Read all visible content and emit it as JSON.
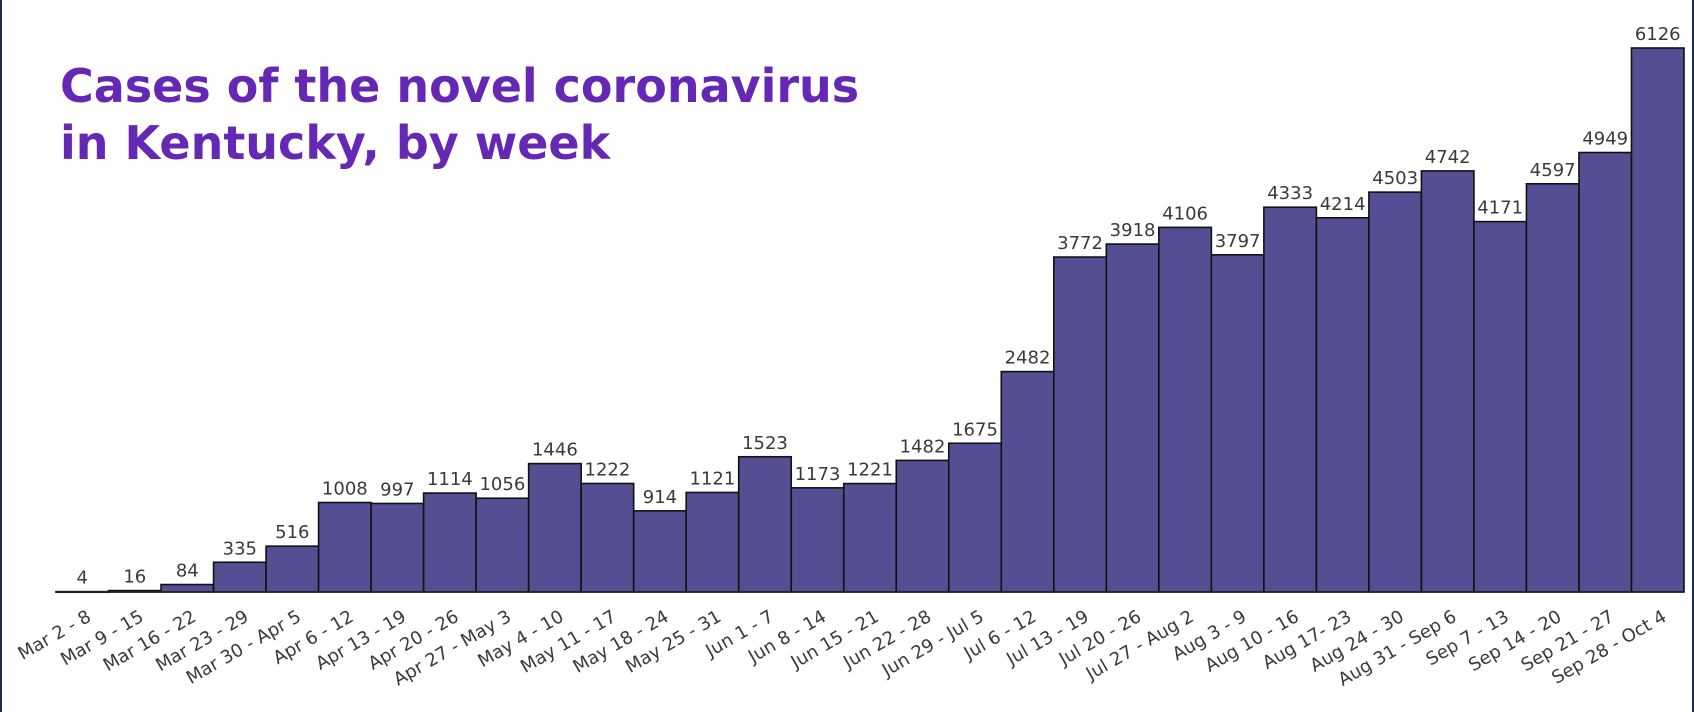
{
  "page": {
    "title": "Cases of the novel coronavirus\nin Kentucky, by week"
  },
  "colors": {
    "title": "#6428b4",
    "bar": "#544f92",
    "outline": "#111111",
    "label": "#3a3a3a"
  },
  "chart_data": {
    "type": "bar",
    "title": "Cases of the novel coronavirus in Kentucky, by week",
    "xlabel": "",
    "ylabel": "",
    "ylim": [
      0,
      6126
    ],
    "grid": false,
    "legend": "none",
    "categories": [
      "Mar 2 - 8",
      "Mar 9 - 15",
      "Mar 16 - 22",
      "Mar 23 - 29",
      "Mar 30 - Apr 5",
      "Apr 6 - 12",
      "Apr 13 - 19",
      "Apr 20 - 26",
      "Apr 27 - May 3",
      "May 4 - 10",
      "May 11 - 17",
      "May 18 - 24",
      "May 25 - 31",
      "Jun 1 - 7",
      "Jun 8 - 14",
      "Jun 15 - 21",
      "Jun 22 - 28",
      "Jun 29 - Jul 5",
      "Jul 6 - 12",
      "Jul 13 - 19",
      "Jul 20 - 26",
      "Jul 27 - Aug 2",
      "Aug 3 - 9",
      "Aug 10 - 16",
      "Aug 17- 23",
      "Aug 24 - 30",
      "Aug 31 - Sep 6",
      "Sep 7 - 13",
      "Sep 14 - 20",
      "Sep 21 - 27",
      "Sep 28 - Oct 4"
    ],
    "values": [
      4,
      16,
      84,
      335,
      516,
      1008,
      997,
      1114,
      1056,
      1446,
      1222,
      914,
      1121,
      1523,
      1173,
      1221,
      1482,
      1675,
      2482,
      3772,
      3918,
      4106,
      3797,
      4333,
      4214,
      4503,
      4742,
      4171,
      4597,
      4949,
      6126
    ]
  }
}
